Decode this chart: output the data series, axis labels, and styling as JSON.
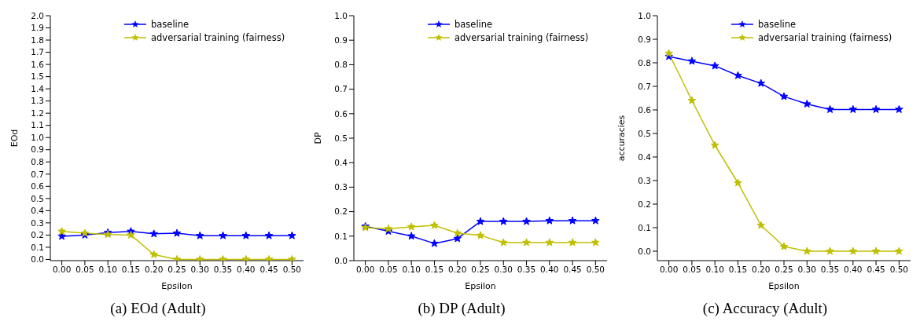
{
  "chart_data": [
    {
      "type": "line",
      "title": "(a)  EOd (Adult)",
      "xlabel": "Epsilon",
      "ylabel": "EOd",
      "legend": "top right",
      "marker": "star",
      "line_style": "solid",
      "grid": false,
      "x": [
        0,
        0.05,
        0.1,
        0.15,
        0.2,
        0.25,
        0.3,
        0.35,
        0.4,
        0.45,
        0.5
      ],
      "xlim": [
        -0.025,
        0.525
      ],
      "xticks": [
        {
          "value": 0,
          "label": "0.00"
        },
        {
          "value": 0.05,
          "label": "0.05"
        },
        {
          "value": 0.1,
          "label": "0.10"
        },
        {
          "value": 0.15,
          "label": "0.15"
        },
        {
          "value": 0.2,
          "label": "0.20"
        },
        {
          "value": 0.25,
          "label": "0.25"
        },
        {
          "value": 0.3,
          "label": "0.30"
        },
        {
          "value": 0.35,
          "label": "0.35"
        },
        {
          "value": 0.4,
          "label": "0.40"
        },
        {
          "value": 0.45,
          "label": "0.45"
        },
        {
          "value": 0.5,
          "label": "0.50"
        }
      ],
      "ylim": [
        -0.01,
        2.0
      ],
      "yticks": [
        {
          "value": 0,
          "label": "0.0"
        },
        {
          "value": 0.1,
          "label": "0.1"
        },
        {
          "value": 0.2,
          "label": "0.2"
        },
        {
          "value": 0.3,
          "label": "0.3"
        },
        {
          "value": 0.4,
          "label": "0.4"
        },
        {
          "value": 0.5,
          "label": "0.5"
        },
        {
          "value": 0.6,
          "label": "0.6"
        },
        {
          "value": 0.7,
          "label": "0.7"
        },
        {
          "value": 0.8,
          "label": "0.8"
        },
        {
          "value": 0.9,
          "label": "0.9"
        },
        {
          "value": 1.0,
          "label": "1.0"
        },
        {
          "value": 1.1,
          "label": "1.1"
        },
        {
          "value": 1.2,
          "label": "1.2"
        },
        {
          "value": 1.3,
          "label": "1.3"
        },
        {
          "value": 1.4,
          "label": "1.4"
        },
        {
          "value": 1.5,
          "label": "1.5"
        },
        {
          "value": 1.6,
          "label": "1.6"
        },
        {
          "value": 1.7,
          "label": "1.7"
        },
        {
          "value": 1.8,
          "label": "1.8"
        },
        {
          "value": 1.9,
          "label": "1.9"
        },
        {
          "value": 2.0,
          "label": "2.0"
        }
      ],
      "series": [
        {
          "name": "baseline",
          "color": "#0000ff",
          "values": [
            0.19,
            0.2,
            0.22,
            0.23,
            0.21,
            0.215,
            0.195,
            0.195,
            0.195,
            0.195,
            0.195
          ]
        },
        {
          "name": "adversarial training (fairness)",
          "color": "#bfbf00",
          "values": [
            0.23,
            0.215,
            0.205,
            0.2,
            0.04,
            0,
            0,
            0,
            0,
            0,
            0
          ]
        }
      ]
    },
    {
      "type": "line",
      "title": "(b)  DP (Adult)",
      "xlabel": "Epsilon",
      "ylabel": "DP",
      "legend": "top right",
      "marker": "star",
      "line_style": "solid",
      "grid": false,
      "x": [
        0,
        0.05,
        0.1,
        0.15,
        0.2,
        0.25,
        0.3,
        0.35,
        0.4,
        0.45,
        0.5
      ],
      "xlim": [
        -0.025,
        0.525
      ],
      "xticks": [
        {
          "value": 0,
          "label": "0.00"
        },
        {
          "value": 0.05,
          "label": "0.05"
        },
        {
          "value": 0.1,
          "label": "0.10"
        },
        {
          "value": 0.15,
          "label": "0.15"
        },
        {
          "value": 0.2,
          "label": "0.20"
        },
        {
          "value": 0.25,
          "label": "0.25"
        },
        {
          "value": 0.3,
          "label": "0.30"
        },
        {
          "value": 0.35,
          "label": "0.35"
        },
        {
          "value": 0.4,
          "label": "0.40"
        },
        {
          "value": 0.45,
          "label": "0.45"
        },
        {
          "value": 0.5,
          "label": "0.50"
        }
      ],
      "ylim": [
        0,
        1.0
      ],
      "yticks": [
        {
          "value": 0,
          "label": "0.0"
        },
        {
          "value": 0.1,
          "label": "0.1"
        },
        {
          "value": 0.2,
          "label": "0.2"
        },
        {
          "value": 0.3,
          "label": "0.3"
        },
        {
          "value": 0.4,
          "label": "0.4"
        },
        {
          "value": 0.5,
          "label": "0.5"
        },
        {
          "value": 0.6,
          "label": "0.6"
        },
        {
          "value": 0.7,
          "label": "0.7"
        },
        {
          "value": 0.8,
          "label": "0.8"
        },
        {
          "value": 0.9,
          "label": "0.9"
        },
        {
          "value": 1.0,
          "label": "1.0"
        }
      ],
      "series": [
        {
          "name": "baseline",
          "color": "#0000ff",
          "values": [
            0.14,
            0.12,
            0.1,
            0.07,
            0.09,
            0.16,
            0.16,
            0.16,
            0.163,
            0.163,
            0.163
          ]
        },
        {
          "name": "adversarial training (fairness)",
          "color": "#bfbf00",
          "values": [
            0.135,
            0.13,
            0.138,
            0.144,
            0.112,
            0.103,
            0.074,
            0.074,
            0.074,
            0.074,
            0.074
          ]
        }
      ]
    },
    {
      "type": "line",
      "title": "(c)  Accuracy (Adult)",
      "xlabel": "Epsilon",
      "ylabel": "accuracies",
      "legend": "top right",
      "marker": "star",
      "line_style": "solid",
      "grid": false,
      "x": [
        0,
        0.05,
        0.1,
        0.15,
        0.2,
        0.25,
        0.3,
        0.35,
        0.4,
        0.45,
        0.5
      ],
      "xlim": [
        -0.025,
        0.525
      ],
      "xticks": [
        {
          "value": 0,
          "label": "0.00"
        },
        {
          "value": 0.05,
          "label": "0.05"
        },
        {
          "value": 0.1,
          "label": "0.10"
        },
        {
          "value": 0.15,
          "label": "0.15"
        },
        {
          "value": 0.2,
          "label": "0.20"
        },
        {
          "value": 0.25,
          "label": "0.25"
        },
        {
          "value": 0.3,
          "label": "0.30"
        },
        {
          "value": 0.35,
          "label": "0.35"
        },
        {
          "value": 0.4,
          "label": "0.40"
        },
        {
          "value": 0.45,
          "label": "0.45"
        },
        {
          "value": 0.5,
          "label": "0.50"
        }
      ],
      "ylim": [
        -0.04,
        1.0
      ],
      "yticks": [
        {
          "value": 0,
          "label": "0.0"
        },
        {
          "value": 0.1,
          "label": "0.1"
        },
        {
          "value": 0.2,
          "label": "0.2"
        },
        {
          "value": 0.3,
          "label": "0.3"
        },
        {
          "value": 0.4,
          "label": "0.4"
        },
        {
          "value": 0.5,
          "label": "0.5"
        },
        {
          "value": 0.6,
          "label": "0.6"
        },
        {
          "value": 0.7,
          "label": "0.7"
        },
        {
          "value": 0.8,
          "label": "0.8"
        },
        {
          "value": 0.9,
          "label": "0.9"
        },
        {
          "value": 1.0,
          "label": "1.0"
        }
      ],
      "series": [
        {
          "name": "baseline",
          "color": "#0000ff",
          "values": [
            0.827,
            0.807,
            0.787,
            0.746,
            0.713,
            0.657,
            0.625,
            0.602,
            0.602,
            0.602,
            0.602
          ]
        },
        {
          "name": "adversarial training (fairness)",
          "color": "#bfbf00",
          "values": [
            0.84,
            0.64,
            0.45,
            0.29,
            0.11,
            0.02,
            0,
            0,
            0,
            0,
            0
          ]
        }
      ]
    }
  ]
}
